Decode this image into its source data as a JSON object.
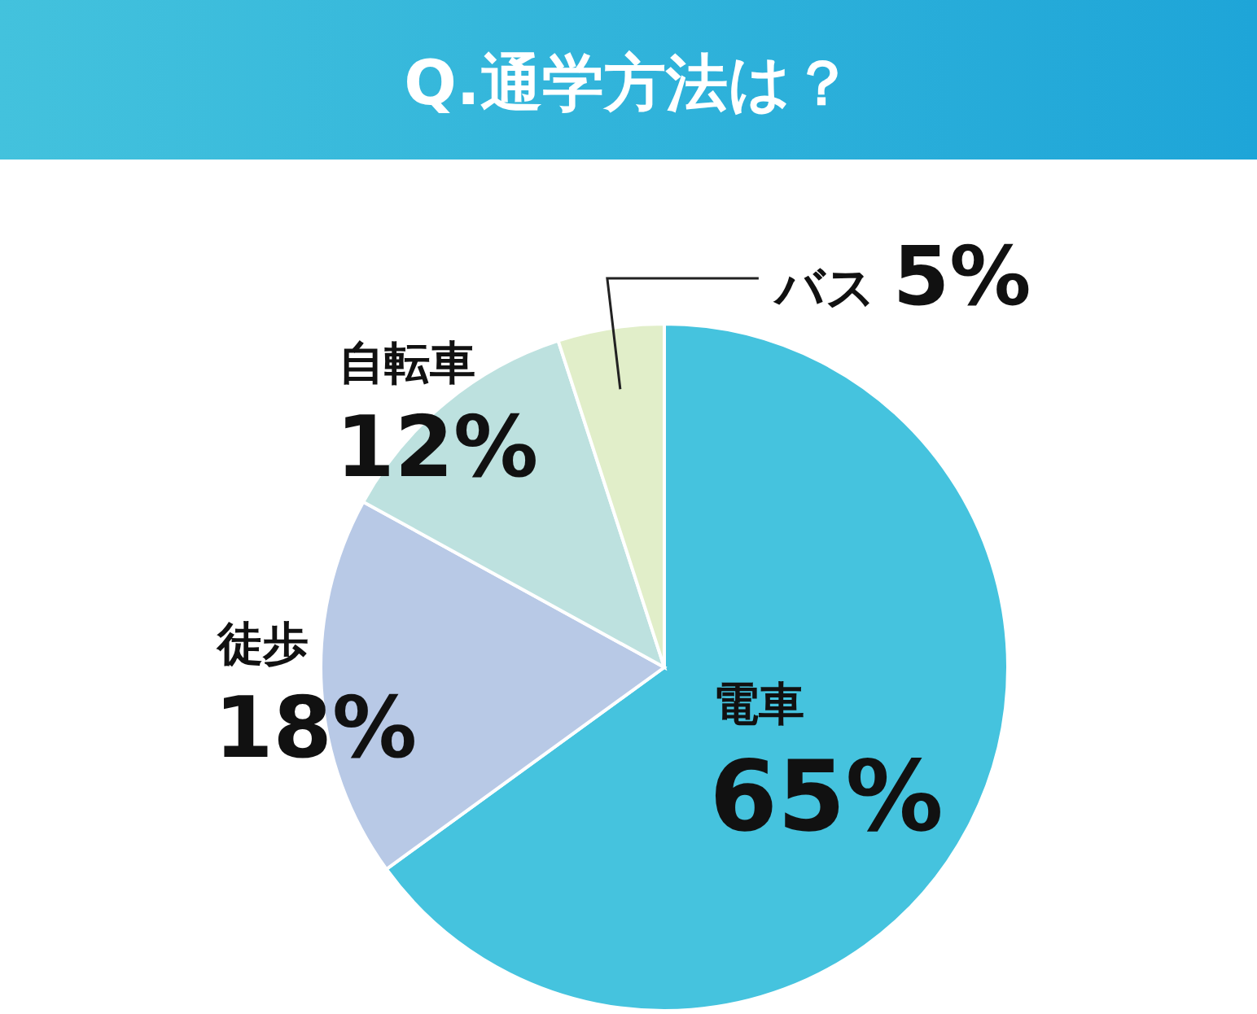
{
  "chart_data": {
    "type": "pie",
    "title": "Q.通学方法は？",
    "categories": [
      "電車",
      "徒歩",
      "自転車",
      "バス"
    ],
    "values": [
      65,
      18,
      12,
      5
    ],
    "value_labels": [
      "65%",
      "18%",
      "12%",
      "5%"
    ],
    "colors": [
      "#45c3de",
      "#b8c9e6",
      "#bde1df",
      "#e1eec9"
    ]
  }
}
